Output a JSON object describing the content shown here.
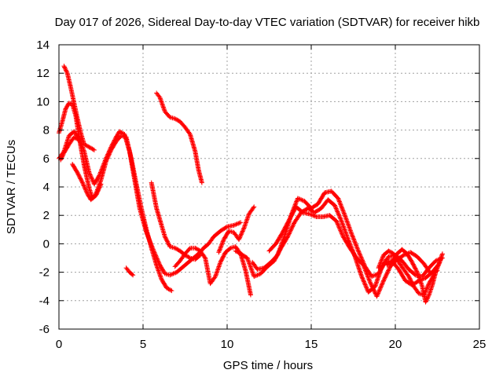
{
  "chart_data": {
    "type": "scatter",
    "title": "Day 017 of 2026, Sidereal Day-to-day VTEC variation (SDTVAR) for receiver hikb",
    "xlabel": "GPS time / hours",
    "ylabel": "SDTVAR / TECUs",
    "xlim": [
      0,
      25
    ],
    "ylim": [
      -6,
      14
    ],
    "x_ticks": [
      0,
      5,
      10,
      15,
      20,
      25
    ],
    "y_ticks": [
      -6,
      -4,
      -2,
      0,
      2,
      4,
      6,
      8,
      10,
      12,
      14
    ],
    "grid": true,
    "marker": "+",
    "color": "#ff0000",
    "series": [
      {
        "name": "s1",
        "points": [
          [
            0.0,
            6.0
          ],
          [
            0.3,
            6.5
          ],
          [
            0.6,
            7.6
          ],
          [
            0.9,
            7.9
          ],
          [
            1.2,
            7.4
          ],
          [
            1.5,
            6.5
          ],
          [
            1.8,
            5.0
          ],
          [
            2.1,
            4.2
          ],
          [
            2.4,
            4.8
          ],
          [
            2.8,
            6.0
          ],
          [
            3.1,
            6.8
          ],
          [
            3.4,
            7.5
          ],
          [
            3.6,
            7.9
          ],
          [
            3.9,
            7.7
          ],
          [
            4.2,
            6.5
          ],
          [
            4.5,
            4.5
          ],
          [
            4.8,
            2.5
          ],
          [
            5.2,
            0.8
          ],
          [
            5.6,
            -0.4
          ],
          [
            6.0,
            -1.5
          ],
          [
            6.3,
            -2.1
          ],
          [
            6.6,
            -2.2
          ],
          [
            7.0,
            -2.0
          ],
          [
            7.3,
            -1.7
          ],
          [
            7.6,
            -1.4
          ],
          [
            8.0,
            -1.0
          ],
          [
            8.3,
            -0.7
          ],
          [
            8.6,
            -0.3
          ],
          [
            8.9,
            0.0
          ],
          [
            9.2,
            0.5
          ],
          [
            9.6,
            0.9
          ],
          [
            10.0,
            1.2
          ],
          [
            10.4,
            1.3
          ],
          [
            10.8,
            1.5
          ]
        ]
      },
      {
        "name": "s2",
        "points": [
          [
            0.0,
            7.8
          ],
          [
            0.2,
            8.6
          ],
          [
            0.4,
            9.5
          ],
          [
            0.6,
            9.9
          ],
          [
            0.8,
            9.8
          ],
          [
            1.0,
            9.0
          ],
          [
            1.2,
            7.5
          ],
          [
            1.5,
            5.5
          ],
          [
            1.8,
            3.9
          ],
          [
            2.0,
            3.2
          ],
          [
            2.2,
            3.5
          ],
          [
            2.5,
            4.5
          ],
          [
            2.8,
            5.8
          ],
          [
            3.1,
            6.6
          ],
          [
            3.4,
            7.2
          ],
          [
            3.7,
            7.6
          ],
          [
            4.0,
            7.5
          ],
          [
            4.3,
            6.0
          ],
          [
            4.6,
            4.2
          ],
          [
            4.9,
            2.5
          ],
          [
            5.2,
            1.0
          ],
          [
            5.5,
            -0.3
          ],
          [
            5.8,
            -1.5
          ],
          [
            6.1,
            -2.5
          ],
          [
            6.4,
            -3.1
          ],
          [
            6.7,
            -3.3
          ]
        ]
      },
      {
        "name": "s3",
        "points": [
          [
            0.3,
            12.5
          ],
          [
            0.5,
            12.0
          ],
          [
            0.7,
            11.0
          ],
          [
            0.9,
            9.9
          ],
          [
            1.1,
            8.8
          ],
          [
            1.3,
            7.8
          ],
          [
            1.5,
            7.0
          ],
          [
            1.8,
            6.8
          ],
          [
            2.1,
            6.6
          ]
        ]
      },
      {
        "name": "s4",
        "points": [
          [
            0.1,
            5.9
          ],
          [
            0.3,
            6.4
          ],
          [
            0.6,
            7.0
          ],
          [
            0.9,
            7.5
          ],
          [
            1.2,
            7.3
          ]
        ]
      },
      {
        "name": "s5",
        "points": [
          [
            0.8,
            5.6
          ],
          [
            1.1,
            5.0
          ],
          [
            1.4,
            4.3
          ],
          [
            1.7,
            3.5
          ],
          [
            1.9,
            3.1
          ],
          [
            2.2,
            3.4
          ],
          [
            2.5,
            4.2
          ]
        ]
      },
      {
        "name": "s6",
        "points": [
          [
            5.5,
            4.3
          ],
          [
            5.8,
            2.5
          ],
          [
            6.1,
            1.3
          ],
          [
            6.3,
            0.5
          ],
          [
            6.6,
            -0.2
          ],
          [
            6.9,
            -0.3
          ],
          [
            7.2,
            -0.5
          ],
          [
            7.5,
            -0.8
          ],
          [
            7.8,
            -1.0
          ],
          [
            8.1,
            -1.1
          ],
          [
            8.4,
            -0.8
          ]
        ]
      },
      {
        "name": "s7",
        "points": [
          [
            5.8,
            10.6
          ],
          [
            6.0,
            10.3
          ],
          [
            6.3,
            9.3
          ],
          [
            6.6,
            8.9
          ],
          [
            6.9,
            8.8
          ],
          [
            7.2,
            8.6
          ],
          [
            7.5,
            8.2
          ],
          [
            7.8,
            7.7
          ],
          [
            8.1,
            6.5
          ],
          [
            8.3,
            5.2
          ],
          [
            8.5,
            4.3
          ]
        ]
      },
      {
        "name": "s8",
        "points": [
          [
            4.0,
            -1.7
          ],
          [
            4.2,
            -2.0
          ],
          [
            4.4,
            -2.2
          ]
        ]
      },
      {
        "name": "s9",
        "points": [
          [
            6.9,
            -1.6
          ],
          [
            7.2,
            -1.2
          ],
          [
            7.5,
            -0.7
          ],
          [
            7.8,
            -0.3
          ],
          [
            8.1,
            -0.3
          ],
          [
            8.4,
            -0.5
          ],
          [
            8.7,
            -1.0
          ],
          [
            9.0,
            -2.8
          ],
          [
            9.3,
            -2.3
          ],
          [
            9.6,
            -1.3
          ],
          [
            9.9,
            -0.6
          ],
          [
            10.2,
            -0.3
          ],
          [
            10.5,
            -0.2
          ],
          [
            10.8,
            -0.7
          ],
          [
            11.1,
            -1.9
          ],
          [
            11.4,
            -3.6
          ]
        ]
      },
      {
        "name": "s10",
        "points": [
          [
            9.5,
            -0.6
          ],
          [
            9.8,
            0.3
          ],
          [
            10.1,
            0.9
          ],
          [
            10.4,
            0.8
          ],
          [
            10.7,
            0.3
          ],
          [
            11.0,
            1.1
          ],
          [
            11.3,
            2.1
          ],
          [
            11.6,
            2.6
          ]
        ]
      },
      {
        "name": "s11",
        "points": [
          [
            10.5,
            -0.5
          ],
          [
            10.8,
            -0.7
          ],
          [
            11.2,
            -1.0
          ],
          [
            11.6,
            -2.3
          ],
          [
            12.0,
            -2.1
          ],
          [
            12.4,
            -1.6
          ],
          [
            12.8,
            -1.2
          ],
          [
            13.2,
            -0.3
          ],
          [
            13.6,
            0.5
          ],
          [
            14.0,
            1.5
          ],
          [
            14.4,
            2.2
          ],
          [
            14.8,
            2.5
          ],
          [
            15.2,
            2.2
          ],
          [
            15.6,
            2.5
          ],
          [
            16.0,
            3.1
          ],
          [
            16.4,
            2.7
          ],
          [
            16.8,
            1.6
          ],
          [
            17.2,
            0.3
          ],
          [
            17.6,
            -0.9
          ],
          [
            18.0,
            -2.3
          ],
          [
            18.4,
            -3.4
          ],
          [
            18.8,
            -3.0
          ],
          [
            19.2,
            -1.6
          ],
          [
            19.6,
            -0.9
          ],
          [
            20.0,
            -0.8
          ],
          [
            20.4,
            -1.2
          ],
          [
            20.8,
            -1.8
          ],
          [
            21.2,
            -2.2
          ],
          [
            21.6,
            -2.3
          ],
          [
            22.0,
            -1.7
          ],
          [
            22.4,
            -1.2
          ],
          [
            22.8,
            -1.0
          ]
        ]
      },
      {
        "name": "s12",
        "points": [
          [
            11.5,
            -1.3
          ],
          [
            11.8,
            -1.8
          ],
          [
            12.2,
            -1.7
          ],
          [
            12.6,
            -1.3
          ],
          [
            13.0,
            -0.8
          ],
          [
            13.4,
            0.5
          ],
          [
            13.8,
            2.0
          ],
          [
            14.2,
            3.2
          ],
          [
            14.6,
            3.0
          ],
          [
            15.0,
            2.5
          ],
          [
            15.4,
            2.8
          ],
          [
            15.8,
            3.6
          ],
          [
            16.2,
            3.7
          ],
          [
            16.6,
            3.2
          ],
          [
            17.0,
            2.0
          ],
          [
            17.4,
            0.7
          ],
          [
            17.8,
            -0.5
          ],
          [
            18.2,
            -1.6
          ],
          [
            18.6,
            -2.3
          ],
          [
            19.0,
            -2.1
          ],
          [
            19.4,
            -1.3
          ],
          [
            19.8,
            -1.2
          ],
          [
            20.2,
            -1.8
          ],
          [
            20.6,
            -2.6
          ],
          [
            21.0,
            -2.9
          ],
          [
            21.4,
            -2.6
          ],
          [
            21.8,
            -2.4
          ],
          [
            22.2,
            -2.0
          ],
          [
            22.6,
            -1.4
          ],
          [
            22.8,
            -0.7
          ]
        ]
      },
      {
        "name": "s13",
        "points": [
          [
            12.5,
            -0.5
          ],
          [
            12.9,
            0.0
          ],
          [
            13.3,
            0.8
          ],
          [
            13.7,
            1.7
          ],
          [
            14.1,
            2.6
          ],
          [
            14.5,
            2.2
          ],
          [
            14.9,
            2.1
          ],
          [
            15.3,
            1.9
          ],
          [
            15.7,
            1.9
          ],
          [
            16.1,
            2.0
          ],
          [
            16.5,
            1.6
          ],
          [
            16.9,
            0.5
          ],
          [
            17.3,
            -0.3
          ],
          [
            17.7,
            -1.0
          ],
          [
            18.1,
            -1.5
          ],
          [
            18.5,
            -2.7
          ],
          [
            18.9,
            -3.7
          ],
          [
            19.3,
            -2.6
          ],
          [
            19.7,
            -1.6
          ],
          [
            20.1,
            -1.1
          ],
          [
            20.5,
            -0.8
          ],
          [
            20.9,
            -0.6
          ],
          [
            21.3,
            -0.9
          ],
          [
            21.7,
            -1.4
          ],
          [
            22.1,
            -2.1
          ],
          [
            22.5,
            -1.9
          ]
        ]
      },
      {
        "name": "s14",
        "points": [
          [
            19.5,
            -1.5
          ],
          [
            19.8,
            -1.3
          ],
          [
            20.1,
            -0.7
          ],
          [
            20.4,
            -0.4
          ],
          [
            20.7,
            -0.7
          ],
          [
            21.0,
            -1.3
          ],
          [
            21.3,
            -2.0
          ],
          [
            21.6,
            -3.0
          ],
          [
            21.8,
            -4.1
          ],
          [
            22.0,
            -3.6
          ],
          [
            22.2,
            -2.9
          ],
          [
            22.4,
            -2.0
          ],
          [
            22.7,
            -1.1
          ]
        ]
      },
      {
        "name": "s15",
        "points": [
          [
            19.0,
            -1.7
          ],
          [
            19.3,
            -0.8
          ],
          [
            19.6,
            -0.5
          ],
          [
            19.9,
            -0.7
          ],
          [
            20.2,
            -1.3
          ],
          [
            20.5,
            -1.8
          ],
          [
            20.8,
            -2.3
          ],
          [
            21.1,
            -3.0
          ],
          [
            21.4,
            -3.5
          ],
          [
            21.7,
            -3.6
          ],
          [
            22.0,
            -2.8
          ],
          [
            22.3,
            -2.2
          ]
        ]
      }
    ]
  }
}
